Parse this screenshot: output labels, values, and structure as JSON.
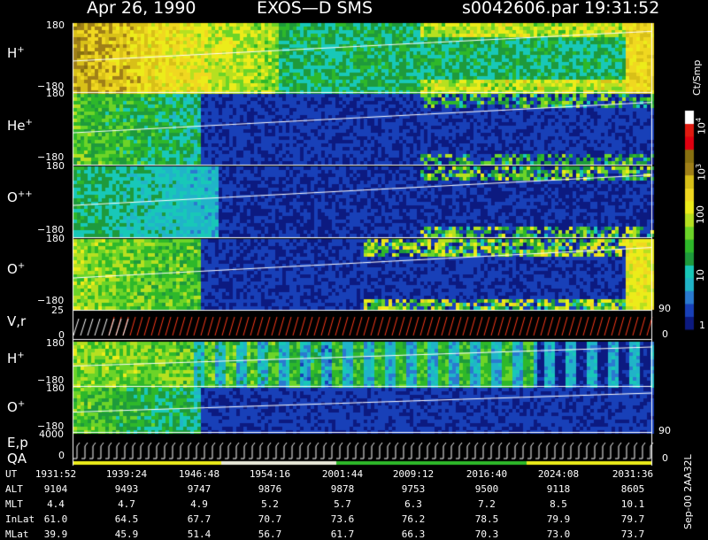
{
  "header": {
    "date": "Apr 26, 1990",
    "instrument": "EXOS—D SMS",
    "file": "s0042606.par",
    "time": "19:31:52"
  },
  "colorbar": {
    "unit": "Ct/Smp",
    "ticks": [
      {
        "label": "1",
        "exp": "",
        "v": 0
      },
      {
        "label": "10",
        "exp": "",
        "v": 1
      },
      {
        "label": "100",
        "exp": "",
        "v": 2
      },
      {
        "label": "10",
        "exp": "3",
        "v": 3
      },
      {
        "label": "10",
        "exp": "4",
        "v": 4
      }
    ],
    "colors": [
      "#0c1a80",
      "#1840b8",
      "#2a7ad0",
      "#20b4c8",
      "#18c8b8",
      "#1e9a3c",
      "#2eb82a",
      "#6cd428",
      "#b6e020",
      "#ecec1a",
      "#f0d820",
      "#d8c018",
      "#a08018",
      "#887010",
      "#e00010",
      "#e01a10",
      "#ffffff"
    ]
  },
  "chart_data": {
    "type": "heatmap",
    "x_ticks": [
      "1931:52",
      "1939:24",
      "1946:48",
      "1954:16",
      "2001:44",
      "2009:12",
      "2016:40",
      "2024:08",
      "2031:36"
    ],
    "panels": [
      {
        "name": "H",
        "sup": "+",
        "ylim": [
          -180,
          180
        ],
        "ticks": [
          "180",
          "−180"
        ]
      },
      {
        "name": "He",
        "sup": "+",
        "ylim": [
          -180,
          180
        ],
        "ticks": [
          "180",
          "−180"
        ]
      },
      {
        "name": "O",
        "sup": "++",
        "ylim": [
          -180,
          180
        ],
        "ticks": [
          "180",
          "−180"
        ]
      },
      {
        "name": "O",
        "sup": "+",
        "ylim": [
          -180,
          180
        ],
        "ticks": [
          "180",
          "−180"
        ]
      },
      {
        "name": "V,r",
        "sup": "",
        "ylim": [
          0,
          25
        ],
        "ticks": [
          "25",
          "0"
        ],
        "right_ticks": [
          "90",
          "0"
        ]
      },
      {
        "name": "H",
        "sup": "+",
        "ylim": [
          -180,
          180
        ],
        "ticks": [
          "180",
          "−180"
        ]
      },
      {
        "name": "O",
        "sup": "+",
        "ylim": [
          -180,
          180
        ],
        "ticks": [
          "180",
          "−180"
        ],
        "right_ticks": [
          "90"
        ]
      },
      {
        "name": "E,p",
        "sup": "",
        "ylim": [
          0,
          4000
        ],
        "ticks": [
          "4000",
          "0"
        ]
      },
      {
        "name": "QA",
        "sup": "",
        "ticks": [
          "0"
        ],
        "right_ticks": [
          "0"
        ]
      }
    ]
  },
  "table": {
    "rows": [
      {
        "label": "UT",
        "values": [
          "1931:52",
          "1939:24",
          "1946:48",
          "1954:16",
          "2001:44",
          "2009:12",
          "2016:40",
          "2024:08",
          "2031:36"
        ]
      },
      {
        "label": "ALT",
        "values": [
          "9104",
          "9493",
          "9747",
          "9876",
          "9878",
          "9753",
          "9500",
          "9118",
          "8605"
        ]
      },
      {
        "label": "MLT",
        "values": [
          "4.4",
          "4.7",
          "4.9",
          "5.2",
          "5.7",
          "6.3",
          "7.2",
          "8.5",
          "10.1"
        ]
      },
      {
        "label": "InLat",
        "values": [
          "61.0",
          "64.5",
          "67.7",
          "70.7",
          "73.6",
          "76.2",
          "78.5",
          "79.9",
          "79.7"
        ]
      },
      {
        "label": "MLat",
        "values": [
          "39.9",
          "45.9",
          "51.4",
          "56.7",
          "61.7",
          "66.3",
          "70.3",
          "73.0",
          "73.7"
        ]
      }
    ]
  },
  "footer": {
    "stamp": "Sep-00  2AA32L"
  }
}
